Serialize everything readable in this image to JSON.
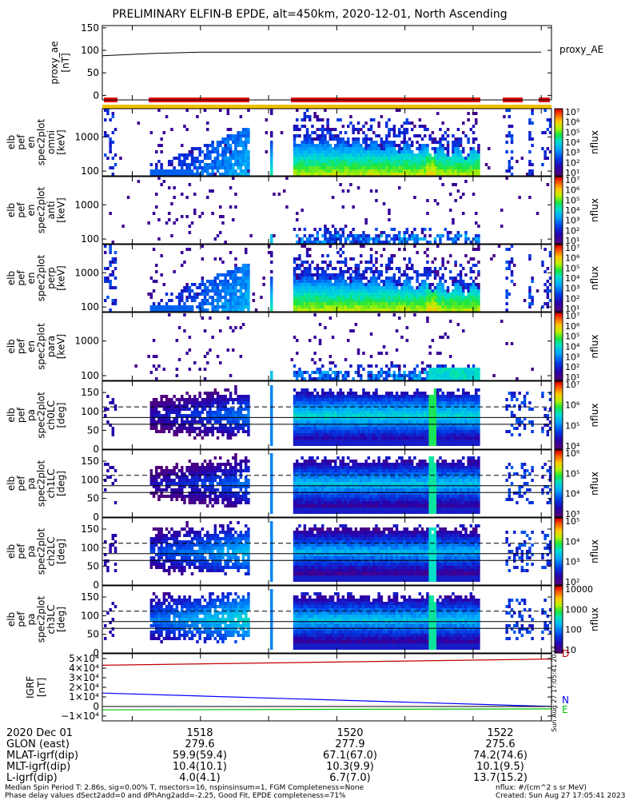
{
  "title": "PRELIMINARY ELFIN-B EPDE, alt=450km, 2020-12-01, North Ascending",
  "colors": {
    "status_red": "#e01010",
    "status_yellow": "#f0c000",
    "igrf_red": "#c00000",
    "igrf_blue": "#0000ff",
    "igrf_green": "#00c000"
  },
  "chart_data": [
    {
      "type": "line",
      "panel": "proxy_ae",
      "ylabel": [
        "proxy_ae",
        "[nT]"
      ],
      "legend": "proxy_AE",
      "yticks": [
        "150",
        "100",
        "50",
        "0"
      ],
      "ylim": [
        -10,
        155
      ],
      "x": [
        1516.56,
        1517.3,
        1518.0,
        1519.0,
        1520.0,
        1521.0,
        1522.0,
        1523.0
      ],
      "values": [
        88,
        93,
        96,
        96,
        96,
        96,
        96,
        96
      ]
    },
    {
      "type": "heatmap",
      "panel": "pef_en_omni",
      "ylabel": [
        "elb",
        "pef",
        "en",
        "spec2plot",
        "omni",
        "[keV]"
      ],
      "yticks": [
        "1000",
        "100"
      ],
      "scale": "log",
      "colorbar": {
        "label": "nflux",
        "ticks": [
          "10⁷",
          "10⁶",
          "10⁵",
          "10⁴",
          "10³",
          "10²",
          "10¹"
        ]
      }
    },
    {
      "type": "heatmap",
      "panel": "pef_en_anti",
      "ylabel": [
        "elb",
        "pef",
        "en",
        "spec2plot",
        "anti",
        "[keV]"
      ],
      "yticks": [
        "1000",
        "100"
      ],
      "scale": "log",
      "colorbar": {
        "label": "nflux",
        "ticks": [
          "10⁷",
          "10⁶",
          "10⁵",
          "10⁴",
          "10³",
          "10²",
          "10¹"
        ]
      }
    },
    {
      "type": "heatmap",
      "panel": "pef_en_perp",
      "ylabel": [
        "elb",
        "pef",
        "en",
        "spec2plot",
        "perp",
        "[keV]"
      ],
      "yticks": [
        "1000",
        "100"
      ],
      "scale": "log",
      "colorbar": {
        "label": "nflux",
        "ticks": [
          "10⁷",
          "10⁶",
          "10⁵",
          "10⁴",
          "10³",
          "10²",
          "10¹"
        ]
      }
    },
    {
      "type": "heatmap",
      "panel": "pef_en_para",
      "ylabel": [
        "elb",
        "pef",
        "en",
        "spec2plot",
        "para",
        "[keV]"
      ],
      "yticks": [
        "1000",
        "100"
      ],
      "scale": "log",
      "colorbar": {
        "label": "nflux",
        "ticks": [
          "10⁷",
          "10⁶",
          "10⁵",
          "10⁴",
          "10³",
          "10²",
          "10¹"
        ]
      }
    },
    {
      "type": "heatmap",
      "panel": "pef_pa_ch0LC",
      "ylabel": [
        "elb",
        "pef",
        "pa",
        "spec2plot",
        "ch0LC",
        "[deg]"
      ],
      "yticks": [
        "150",
        "100",
        "50",
        "0"
      ],
      "ylim": [
        0,
        180
      ],
      "colorbar": {
        "label": "nflux",
        "ticks": [
          "10⁷",
          "10⁶",
          "10⁵",
          "10⁴"
        ]
      }
    },
    {
      "type": "heatmap",
      "panel": "pef_pa_ch1LC",
      "ylabel": [
        "elb",
        "pef",
        "pa",
        "spec2plot",
        "ch1LC",
        "[deg]"
      ],
      "yticks": [
        "150",
        "100",
        "50",
        "0"
      ],
      "ylim": [
        0,
        180
      ],
      "colorbar": {
        "label": "nflux",
        "ticks": [
          "10⁶",
          "10⁵",
          "10⁴",
          "10³"
        ]
      }
    },
    {
      "type": "heatmap",
      "panel": "pef_pa_ch2LC",
      "ylabel": [
        "elb",
        "pef",
        "pa",
        "spec2plot",
        "ch2LC",
        "[deg]"
      ],
      "yticks": [
        "150",
        "100",
        "50",
        "0"
      ],
      "ylim": [
        0,
        180
      ],
      "colorbar": {
        "label": "nflux",
        "ticks": [
          "10⁵",
          "10⁴",
          "10³",
          "10²"
        ]
      }
    },
    {
      "type": "heatmap",
      "panel": "pef_pa_ch3LC",
      "ylabel": [
        "elb",
        "pef",
        "pa",
        "spec2plot",
        "ch3LC",
        "[deg]"
      ],
      "yticks": [
        "150",
        "100",
        "50",
        "0"
      ],
      "ylim": [
        0,
        180
      ],
      "colorbar": {
        "label": "nflux",
        "ticks": [
          "10000",
          "1000",
          "100",
          "10"
        ]
      }
    },
    {
      "type": "line",
      "panel": "igrf",
      "ylabel": [
        "IGRF",
        "[nT]"
      ],
      "yticks": [
        "5×10⁴",
        "4×10⁴",
        "3×10⁴",
        "2×10⁴",
        "1×10⁴",
        "0",
        "−1×10⁴"
      ],
      "ylim": [
        -15000,
        55000
      ],
      "x": [
        1516.56,
        1523.15
      ],
      "series": [
        {
          "name": "D",
          "values": [
            43000,
            49500
          ]
        },
        {
          "name": "N",
          "values": [
            14000,
            0
          ]
        },
        {
          "name": "E",
          "values": [
            -3500,
            -2500
          ]
        }
      ],
      "side_text": "Sun Aug 27 17:05:41 2023"
    }
  ],
  "footer": {
    "date": "2020 Dec 01",
    "ticks": [
      "1518",
      "1520",
      "1522"
    ],
    "rows": [
      {
        "label": "GLON (east)",
        "values": [
          "279.6",
          "277.9",
          "275.6"
        ]
      },
      {
        "label": "MLAT-igrf(dip)",
        "values": [
          "59.9(59.4)",
          "67.1(67.0)",
          "74.2(74.6)"
        ]
      },
      {
        "label": "MLT-igrf(dip)",
        "values": [
          "10.4(10.1)",
          "10.3(9.9)",
          "10.1(9.5)"
        ]
      },
      {
        "label": "L-igrf(dip)",
        "values": [
          "4.0(4.1)",
          "6.7(7.0)",
          "13.7(15.2)"
        ]
      }
    ],
    "note1": "Median Spin Period T: 2.86s, sig=0.00% T, nsectors=16, nspinsinsum=1, FGM Completeness=None",
    "note2": "Phase delay values dSect2add=0 and dPhAng2add=-2.25, Good Fit, EPDE completeness=71%",
    "units": "nflux: #/(cm^2 s sr MeV)",
    "created": "Created: Sun Aug 27 17:05:41 2023"
  }
}
